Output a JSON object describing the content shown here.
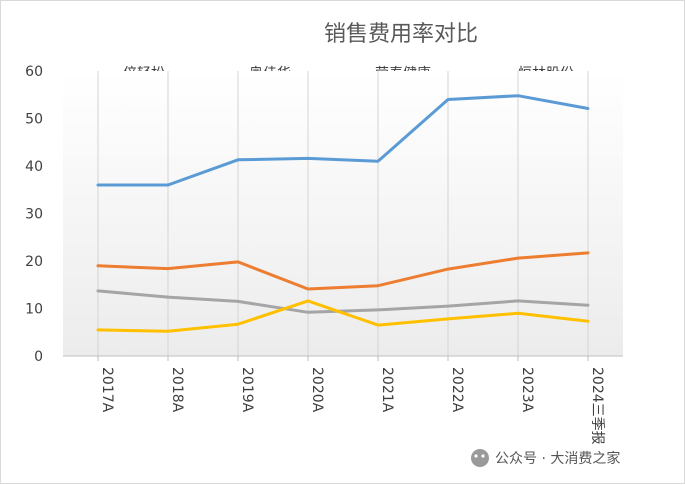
{
  "chart_data": {
    "type": "line",
    "title": "销售费用率对比",
    "categories": [
      "2017A",
      "2018A",
      "2019A",
      "2020A",
      "2021A",
      "2022A",
      "2023A",
      "2024三季报"
    ],
    "ylim": [
      0,
      60
    ],
    "yticks": [
      0,
      10,
      20,
      30,
      40,
      50,
      60
    ],
    "grid": "vertical",
    "legend_position": "top",
    "series": [
      {
        "name": "倍轻松",
        "color": "#5B9BD5",
        "values": [
          36.0,
          36.0,
          41.3,
          41.6,
          41.0,
          54.0,
          54.8,
          52.1
        ]
      },
      {
        "name": "奥佳华",
        "color": "#ED7D31",
        "values": [
          19.0,
          18.4,
          19.8,
          14.1,
          14.8,
          18.3,
          20.6,
          21.7
        ]
      },
      {
        "name": "荣泰健康",
        "color": "#A5A5A5",
        "values": [
          13.7,
          12.4,
          11.5,
          9.2,
          9.7,
          10.5,
          11.6,
          10.7
        ]
      },
      {
        "name": "恒林股份",
        "color": "#FFC000",
        "values": [
          5.5,
          5.2,
          6.7,
          11.6,
          6.5,
          7.8,
          9.0,
          7.3
        ]
      }
    ]
  },
  "watermark": {
    "icon": "wechat-icon",
    "text": "公众号 · 大消费之家"
  }
}
